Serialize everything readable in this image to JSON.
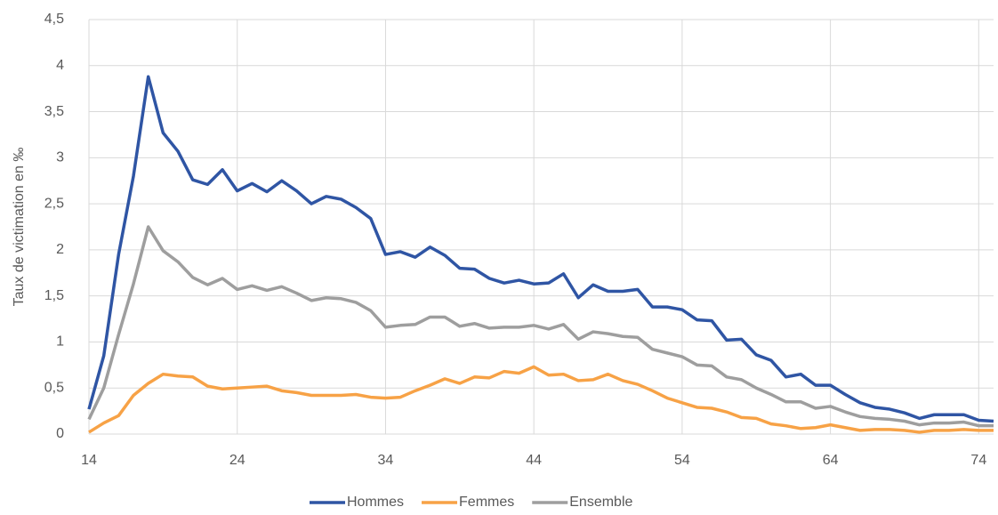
{
  "chart_data": {
    "type": "line",
    "y_label": "Taux de victimation en  ‰",
    "x": [
      14,
      15,
      16,
      17,
      18,
      19,
      20,
      21,
      22,
      23,
      24,
      25,
      26,
      27,
      28,
      29,
      30,
      31,
      32,
      33,
      34,
      35,
      36,
      37,
      38,
      39,
      40,
      41,
      42,
      43,
      44,
      45,
      46,
      47,
      48,
      49,
      50,
      51,
      52,
      53,
      54,
      55,
      56,
      57,
      58,
      59,
      60,
      61,
      62,
      63,
      64,
      65,
      66,
      67,
      68,
      69,
      70,
      71,
      72,
      73,
      74,
      75
    ],
    "series": [
      {
        "name": "Hommes",
        "color": "#2f55a4",
        "values": [
          0.27,
          0.85,
          1.95,
          2.8,
          3.88,
          3.27,
          3.07,
          2.76,
          2.71,
          2.87,
          2.64,
          2.72,
          2.63,
          2.75,
          2.64,
          2.5,
          2.58,
          2.55,
          2.46,
          2.34,
          1.95,
          1.98,
          1.92,
          2.03,
          1.94,
          1.8,
          1.79,
          1.69,
          1.64,
          1.67,
          1.63,
          1.64,
          1.74,
          1.48,
          1.62,
          1.55,
          1.55,
          1.57,
          1.38,
          1.38,
          1.35,
          1.24,
          1.23,
          1.02,
          1.03,
          0.86,
          0.8,
          0.62,
          0.65,
          0.53,
          0.53,
          0.43,
          0.34,
          0.29,
          0.27,
          0.23,
          0.17,
          0.21,
          0.21,
          0.21,
          0.15,
          0.14
        ]
      },
      {
        "name": "Femmes",
        "color": "#f7a246",
        "values": [
          0.02,
          0.12,
          0.2,
          0.42,
          0.55,
          0.65,
          0.63,
          0.62,
          0.52,
          0.49,
          0.5,
          0.51,
          0.52,
          0.47,
          0.45,
          0.42,
          0.42,
          0.42,
          0.43,
          0.4,
          0.39,
          0.4,
          0.47,
          0.53,
          0.6,
          0.55,
          0.62,
          0.61,
          0.68,
          0.66,
          0.73,
          0.64,
          0.65,
          0.58,
          0.59,
          0.65,
          0.58,
          0.54,
          0.47,
          0.39,
          0.34,
          0.29,
          0.28,
          0.24,
          0.18,
          0.17,
          0.11,
          0.09,
          0.06,
          0.07,
          0.1,
          0.07,
          0.04,
          0.05,
          0.05,
          0.04,
          0.02,
          0.04,
          0.04,
          0.05,
          0.04,
          0.04
        ]
      },
      {
        "name": "Ensemble",
        "color": "#9e9e9e",
        "values": [
          0.16,
          0.5,
          1.08,
          1.63,
          2.25,
          1.99,
          1.87,
          1.7,
          1.62,
          1.69,
          1.57,
          1.61,
          1.56,
          1.6,
          1.53,
          1.45,
          1.48,
          1.47,
          1.43,
          1.34,
          1.16,
          1.18,
          1.19,
          1.27,
          1.27,
          1.17,
          1.2,
          1.15,
          1.16,
          1.16,
          1.18,
          1.14,
          1.19,
          1.03,
          1.11,
          1.09,
          1.06,
          1.05,
          0.92,
          0.88,
          0.84,
          0.75,
          0.74,
          0.62,
          0.59,
          0.5,
          0.43,
          0.35,
          0.35,
          0.28,
          0.3,
          0.24,
          0.19,
          0.17,
          0.16,
          0.14,
          0.1,
          0.12,
          0.12,
          0.13,
          0.09,
          0.09
        ]
      }
    ],
    "xlim": [
      14,
      75
    ],
    "xticks": [
      14,
      24,
      34,
      44,
      54,
      64,
      74
    ],
    "ylim": [
      0,
      4.5
    ],
    "yticks": [
      0,
      {
        "value": 0.5,
        "label": "0,5"
      },
      1,
      {
        "value": 1.5,
        "label": "1,5"
      },
      2,
      {
        "value": 2.5,
        "label": "2,5"
      },
      3,
      {
        "value": 3.5,
        "label": "3,5"
      },
      4,
      {
        "value": 4.5,
        "label": "4,5"
      }
    ],
    "grid": true,
    "legend": "bottom"
  }
}
